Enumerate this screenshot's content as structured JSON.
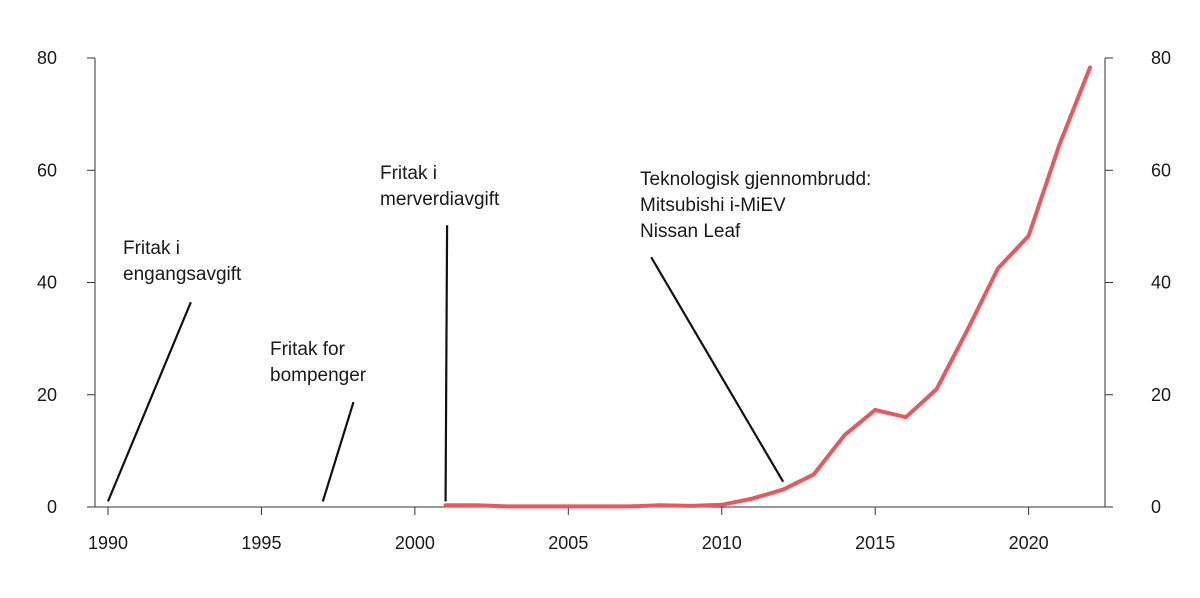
{
  "chart_data": {
    "type": "line",
    "title": "",
    "xlabel": "",
    "ylabel": "",
    "xlim": [
      1990,
      2022
    ],
    "ylim": [
      0,
      80
    ],
    "x_ticks": [
      "1990",
      "1995",
      "2000",
      "2005",
      "2010",
      "2015",
      "2020"
    ],
    "y_ticks_left": [
      "0",
      "20",
      "40",
      "60",
      "80"
    ],
    "y_ticks_right": [
      "0",
      "20",
      "40",
      "60",
      "80"
    ],
    "grid": false,
    "legend": "none",
    "series": [
      {
        "color": "#e8585c",
        "x": [
          2001,
          2002,
          2003,
          2004,
          2005,
          2006,
          2007,
          2008,
          2009,
          2010,
          2011,
          2012,
          2013,
          2014,
          2015,
          2016,
          2017,
          2018,
          2019,
          2020,
          2021,
          2022
        ],
        "y": [
          0.3,
          0.3,
          0.1,
          0.1,
          0.1,
          0.1,
          0.1,
          0.3,
          0.2,
          0.4,
          1.5,
          3.1,
          5.8,
          12.8,
          17.3,
          16.0,
          21.0,
          31.5,
          42.5,
          48.3,
          64.5,
          78.3
        ]
      }
    ],
    "annotations": [
      {
        "lines": [
          "Fritak i",
          "engangsavgift"
        ],
        "x": 1990,
        "y": 1,
        "tip_year": 1992.7,
        "tip_value": 36.5
      },
      {
        "lines": [
          "Fritak for",
          "bompenger"
        ],
        "x": 1997,
        "y": 1,
        "tip_year": 1998.0,
        "tip_value": 18.7
      },
      {
        "lines": [
          "Fritak i",
          "merverdiavgift"
        ],
        "x": 2001,
        "y": 1,
        "tip_year": 2001.05,
        "tip_value": 50.2
      },
      {
        "lines": [
          "Teknologisk gjennombrudd:",
          "Mitsubishi i-MiEV",
          "Nissan Leaf"
        ],
        "x": 2012,
        "y": 4.5,
        "tip_year": 2007.7,
        "tip_value": 44.5
      }
    ]
  }
}
